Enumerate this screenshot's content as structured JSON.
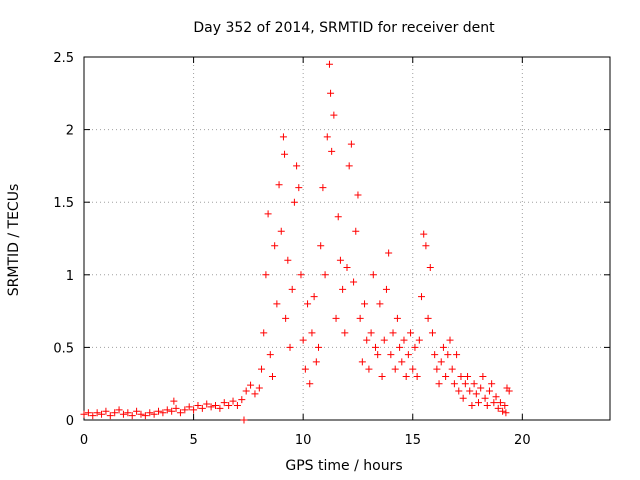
{
  "chart_data": {
    "type": "scatter",
    "title": "Day 352 of 2014, SRMTID for receiver dent",
    "xlabel": "GPS time / hours",
    "ylabel": "SRMTID / TECUs",
    "xlim": [
      0,
      24
    ],
    "ylim": [
      0,
      2.5
    ],
    "x_ticks": [
      "0",
      "5",
      "10",
      "15",
      "20"
    ],
    "y_ticks": [
      "0",
      "0.5",
      "1",
      "1.5",
      "2",
      "2.5"
    ],
    "grid": true,
    "marker": "+",
    "marker_color": "#ff0000",
    "series": [
      {
        "name": "SRMTID",
        "points": [
          [
            0.0,
            0.04
          ],
          [
            0.2,
            0.05
          ],
          [
            0.4,
            0.03
          ],
          [
            0.6,
            0.05
          ],
          [
            0.8,
            0.04
          ],
          [
            1.0,
            0.06
          ],
          [
            1.2,
            0.03
          ],
          [
            1.4,
            0.05
          ],
          [
            1.6,
            0.07
          ],
          [
            1.8,
            0.04
          ],
          [
            2.0,
            0.05
          ],
          [
            2.2,
            0.03
          ],
          [
            2.4,
            0.06
          ],
          [
            2.6,
            0.04
          ],
          [
            2.8,
            0.03
          ],
          [
            3.0,
            0.05
          ],
          [
            3.2,
            0.04
          ],
          [
            3.4,
            0.06
          ],
          [
            3.6,
            0.05
          ],
          [
            3.8,
            0.07
          ],
          [
            4.0,
            0.06
          ],
          [
            4.1,
            0.13
          ],
          [
            4.2,
            0.08
          ],
          [
            4.4,
            0.05
          ],
          [
            4.6,
            0.07
          ],
          [
            4.8,
            0.09
          ],
          [
            5.0,
            0.07
          ],
          [
            5.2,
            0.1
          ],
          [
            5.4,
            0.08
          ],
          [
            5.6,
            0.11
          ],
          [
            5.8,
            0.09
          ],
          [
            6.0,
            0.1
          ],
          [
            6.2,
            0.08
          ],
          [
            6.4,
            0.12
          ],
          [
            6.6,
            0.1
          ],
          [
            6.8,
            0.13
          ],
          [
            7.0,
            0.1
          ],
          [
            7.2,
            0.14
          ],
          [
            7.3,
            0.0
          ],
          [
            7.4,
            0.2
          ],
          [
            7.6,
            0.24
          ],
          [
            7.8,
            0.18
          ],
          [
            8.0,
            0.22
          ],
          [
            8.1,
            0.35
          ],
          [
            8.2,
            0.6
          ],
          [
            8.3,
            1.0
          ],
          [
            8.4,
            1.42
          ],
          [
            8.5,
            0.45
          ],
          [
            8.6,
            0.3
          ],
          [
            8.7,
            1.2
          ],
          [
            8.8,
            0.8
          ],
          [
            8.9,
            1.62
          ],
          [
            9.0,
            1.3
          ],
          [
            9.1,
            1.95
          ],
          [
            9.15,
            1.83
          ],
          [
            9.2,
            0.7
          ],
          [
            9.3,
            1.1
          ],
          [
            9.4,
            0.5
          ],
          [
            9.5,
            0.9
          ],
          [
            9.6,
            1.5
          ],
          [
            9.7,
            1.75
          ],
          [
            9.8,
            1.6
          ],
          [
            9.9,
            1.0
          ],
          [
            10.0,
            0.55
          ],
          [
            10.1,
            0.35
          ],
          [
            10.2,
            0.8
          ],
          [
            10.3,
            0.25
          ],
          [
            10.4,
            0.6
          ],
          [
            10.5,
            0.85
          ],
          [
            10.6,
            0.4
          ],
          [
            10.7,
            0.5
          ],
          [
            10.8,
            1.2
          ],
          [
            10.9,
            1.6
          ],
          [
            11.0,
            1.0
          ],
          [
            11.1,
            1.95
          ],
          [
            11.2,
            2.45
          ],
          [
            11.25,
            2.25
          ],
          [
            11.3,
            1.85
          ],
          [
            11.4,
            2.1
          ],
          [
            11.5,
            0.7
          ],
          [
            11.6,
            1.4
          ],
          [
            11.7,
            1.1
          ],
          [
            11.8,
            0.9
          ],
          [
            11.9,
            0.6
          ],
          [
            12.0,
            1.05
          ],
          [
            12.1,
            1.75
          ],
          [
            12.2,
            1.9
          ],
          [
            12.3,
            0.95
          ],
          [
            12.4,
            1.3
          ],
          [
            12.5,
            1.55
          ],
          [
            12.6,
            0.7
          ],
          [
            12.7,
            0.4
          ],
          [
            12.8,
            0.8
          ],
          [
            12.9,
            0.55
          ],
          [
            13.0,
            0.35
          ],
          [
            13.1,
            0.6
          ],
          [
            13.2,
            1.0
          ],
          [
            13.3,
            0.5
          ],
          [
            13.4,
            0.45
          ],
          [
            13.5,
            0.8
          ],
          [
            13.6,
            0.3
          ],
          [
            13.7,
            0.55
          ],
          [
            13.8,
            0.9
          ],
          [
            13.9,
            1.15
          ],
          [
            14.0,
            0.45
          ],
          [
            14.1,
            0.6
          ],
          [
            14.2,
            0.35
          ],
          [
            14.3,
            0.7
          ],
          [
            14.4,
            0.5
          ],
          [
            14.5,
            0.4
          ],
          [
            14.6,
            0.55
          ],
          [
            14.7,
            0.3
          ],
          [
            14.8,
            0.45
          ],
          [
            14.9,
            0.6
          ],
          [
            15.0,
            0.35
          ],
          [
            15.1,
            0.5
          ],
          [
            15.2,
            0.3
          ],
          [
            15.3,
            0.55
          ],
          [
            15.4,
            0.85
          ],
          [
            15.5,
            1.28
          ],
          [
            15.6,
            1.2
          ],
          [
            15.7,
            0.7
          ],
          [
            15.8,
            1.05
          ],
          [
            15.9,
            0.6
          ],
          [
            16.0,
            0.45
          ],
          [
            16.1,
            0.35
          ],
          [
            16.2,
            0.25
          ],
          [
            16.3,
            0.4
          ],
          [
            16.4,
            0.5
          ],
          [
            16.5,
            0.3
          ],
          [
            16.6,
            0.45
          ],
          [
            16.7,
            0.55
          ],
          [
            16.8,
            0.35
          ],
          [
            16.9,
            0.25
          ],
          [
            17.0,
            0.45
          ],
          [
            17.1,
            0.2
          ],
          [
            17.2,
            0.3
          ],
          [
            17.3,
            0.15
          ],
          [
            17.4,
            0.25
          ],
          [
            17.5,
            0.3
          ],
          [
            17.6,
            0.2
          ],
          [
            17.7,
            0.1
          ],
          [
            17.8,
            0.25
          ],
          [
            17.9,
            0.18
          ],
          [
            18.0,
            0.12
          ],
          [
            18.1,
            0.22
          ],
          [
            18.2,
            0.3
          ],
          [
            18.3,
            0.15
          ],
          [
            18.4,
            0.1
          ],
          [
            18.5,
            0.2
          ],
          [
            18.6,
            0.25
          ],
          [
            18.7,
            0.12
          ],
          [
            18.8,
            0.16
          ],
          [
            18.9,
            0.08
          ],
          [
            19.0,
            0.12
          ],
          [
            19.1,
            0.06
          ],
          [
            19.2,
            0.1
          ],
          [
            19.25,
            0.05
          ],
          [
            19.3,
            0.22
          ],
          [
            19.4,
            0.2
          ]
        ]
      }
    ]
  }
}
